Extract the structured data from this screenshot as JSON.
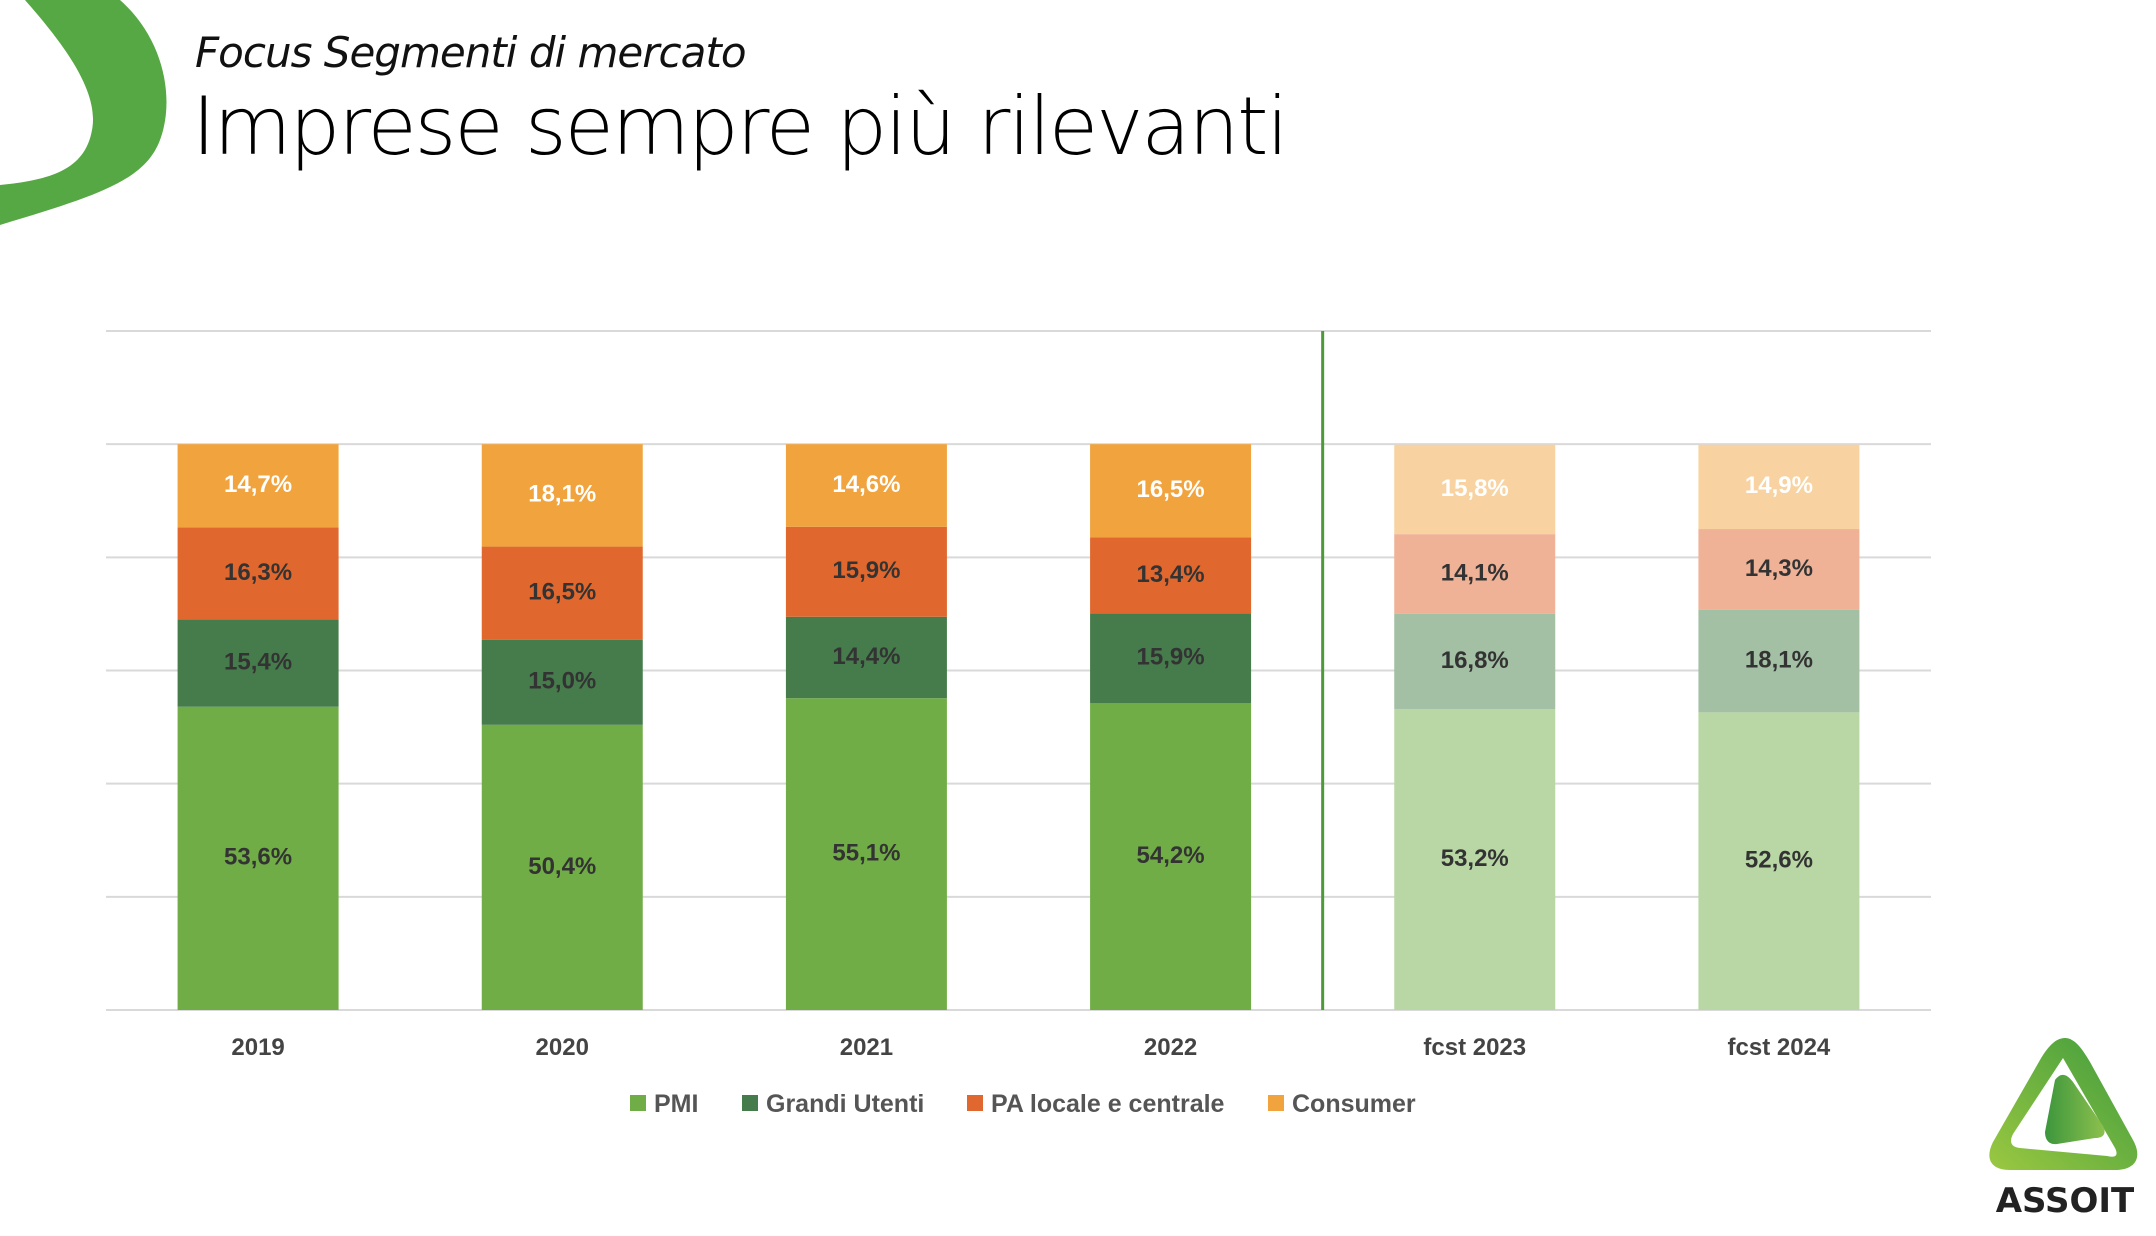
{
  "header": {
    "subtitle": "Focus Segmenti di mercato",
    "title": "Imprese sempre più rilevanti"
  },
  "logo": {
    "text": "ASSOIT"
  },
  "chart_data": {
    "type": "bar",
    "stacked": true,
    "title": "",
    "xlabel": "",
    "ylabel": "",
    "ylim": [
      0,
      120
    ],
    "grid": true,
    "legend_position": "bottom",
    "categories": [
      "2019",
      "2020",
      "2021",
      "2022",
      "fcst 2023",
      "fcst 2024"
    ],
    "forecast_from_index": 4,
    "series": [
      {
        "name": "PMI",
        "color": "#70AD47",
        "forecast_color": "#B9D7A5",
        "label_color": "#333333",
        "values": [
          53.6,
          50.4,
          55.1,
          54.2,
          53.2,
          52.6
        ],
        "labels": [
          "53,6%",
          "50,4%",
          "55,1%",
          "54,2%",
          "53,2%",
          "52,6%"
        ]
      },
      {
        "name": "Grandi Utenti",
        "color": "#467B4C",
        "forecast_color": "#A3BFA4",
        "label_color": "#333333",
        "values": [
          15.4,
          15.0,
          14.4,
          15.9,
          16.8,
          18.1
        ],
        "labels": [
          "15,4%",
          "15,0%",
          "14,4%",
          "15,9%",
          "16,8%",
          "18,1%"
        ]
      },
      {
        "name": "PA locale e centrale",
        "color": "#E0682E",
        "forecast_color": "#EFB297",
        "label_color": "#333333",
        "values": [
          16.3,
          16.5,
          15.9,
          13.4,
          14.1,
          14.3
        ],
        "labels": [
          "16,3%",
          "16,5%",
          "15,9%",
          "13,4%",
          "14,1%",
          "14,3%"
        ]
      },
      {
        "name": "Consumer",
        "color": "#F1A33E",
        "forecast_color": "#F8D3A1",
        "label_color": "#FFFFFF",
        "values": [
          14.7,
          18.1,
          14.6,
          16.5,
          15.8,
          14.9
        ],
        "labels": [
          "14,7%",
          "18,1%",
          "14,6%",
          "16,5%",
          "15,8%",
          "14,9%"
        ]
      }
    ]
  }
}
